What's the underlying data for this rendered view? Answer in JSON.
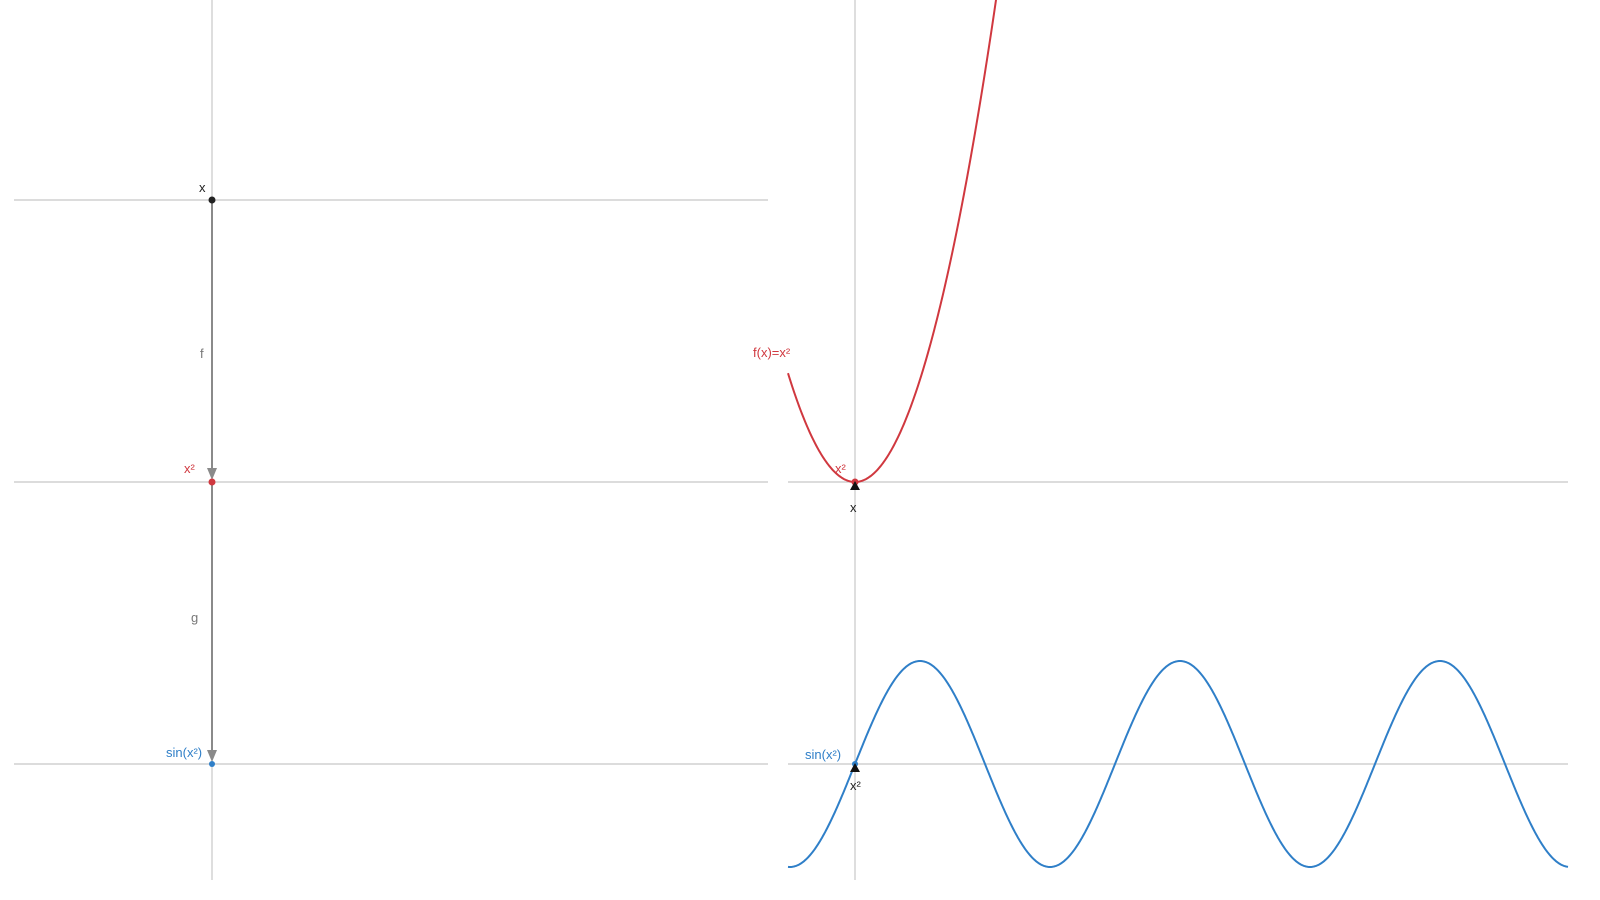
{
  "left_panel": {
    "levels": {
      "input": {
        "label": "x",
        "color": "#222222"
      },
      "middle": {
        "label": "x²",
        "color": "#d0383f"
      },
      "output": {
        "label": "sin(x²)",
        "color": "#2f7fc8"
      }
    },
    "maps": {
      "first": {
        "label": "f"
      },
      "second": {
        "label": "g"
      }
    },
    "arrow_color": "#8a8a8a",
    "axis_color": "#c8c8c8"
  },
  "right_panel": {
    "top_plot": {
      "function_label": "f(x)=x²",
      "point_label": "x²",
      "input_label": "x",
      "color": "#d0383f"
    },
    "bottom_plot": {
      "function_label": "sin(x²)",
      "input_label": "x²",
      "color": "#2f7fc8"
    }
  }
}
